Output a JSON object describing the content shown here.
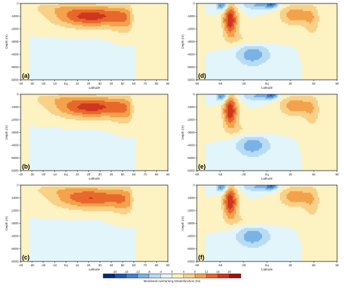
{
  "chart_data": {
    "type": "heatmap",
    "colorbar": {
      "label": "Meridional overturning streamfunction (Sv)",
      "ticks": [
        -20,
        -16,
        -12,
        -8,
        -4,
        0,
        4,
        8,
        12,
        16,
        20
      ],
      "tick_labels": [
        "-20",
        "-16",
        "-12",
        "-8",
        "-4",
        "0",
        "4",
        "8",
        "12",
        "16",
        "20"
      ],
      "colors": [
        "#0a2a78",
        "#1f56b0",
        "#3f82d2",
        "#79b3e6",
        "#b8dcf3",
        "#e2f5fb",
        "#fcf2c2",
        "#f8d088",
        "#f3a24b",
        "#e8682c",
        "#cf361f",
        "#9b1414"
      ]
    },
    "panels": [
      {
        "label": "(a)",
        "basin": "atlantic",
        "xlabel": "Latitude",
        "ylabel": "Depth (m)",
        "xlim": [
          -40,
          90
        ],
        "ylim": [
          -6000,
          0
        ],
        "x_ticks": [
          -40,
          -30,
          -20,
          -10,
          0,
          10,
          20,
          30,
          40,
          50,
          60,
          70,
          80,
          90
        ],
        "x_tick_labels": [
          "-40",
          "-30",
          "-20",
          "-10",
          "Eq",
          "10",
          "20",
          "30",
          "40",
          "50",
          "60",
          "70",
          "80",
          "90"
        ],
        "y_ticks": [
          0,
          -1000,
          -2000,
          -3000,
          -4000,
          -5000,
          -6000
        ],
        "y_tick_labels": [
          "0",
          "-1000",
          "-2000",
          "-3000",
          "-4000",
          "-5000",
          "-6000"
        ],
        "max_sv": 18
      },
      {
        "label": "(b)",
        "basin": "atlantic",
        "xlabel": "Latitude",
        "ylabel": "Depth (m)",
        "xlim": [
          -40,
          90
        ],
        "ylim": [
          -6000,
          0
        ],
        "x_ticks": [
          -40,
          -30,
          -20,
          -10,
          0,
          10,
          20,
          30,
          40,
          50,
          60,
          70,
          80,
          90
        ],
        "x_tick_labels": [
          "-40",
          "-30",
          "-20",
          "-10",
          "Eq",
          "10",
          "20",
          "30",
          "40",
          "50",
          "60",
          "70",
          "80",
          "90"
        ],
        "y_ticks": [
          0,
          -1000,
          -2000,
          -3000,
          -4000,
          -5000,
          -6000
        ],
        "y_tick_labels": [
          "0",
          "-1000",
          "-2000",
          "-3000",
          "-4000",
          "-5000",
          "-6000"
        ],
        "max_sv": 18
      },
      {
        "label": "(c)",
        "basin": "atlantic",
        "xlabel": "Latitude",
        "ylabel": "Depth (m)",
        "xlim": [
          -40,
          90
        ],
        "ylim": [
          -6000,
          0
        ],
        "x_ticks": [
          -40,
          -30,
          -20,
          -10,
          0,
          10,
          20,
          30,
          40,
          50,
          60,
          70,
          80,
          90
        ],
        "x_tick_labels": [
          "-40",
          "-30",
          "-20",
          "-10",
          "Eq",
          "10",
          "20",
          "30",
          "40",
          "50",
          "60",
          "70",
          "80",
          "90"
        ],
        "y_ticks": [
          0,
          -1000,
          -2000,
          -3000,
          -4000,
          -5000,
          -6000
        ],
        "y_tick_labels": [
          "0",
          "-1000",
          "-2000",
          "-3000",
          "-4000",
          "-5000",
          "-6000"
        ],
        "max_sv": 16
      },
      {
        "label": "(d)",
        "basin": "global",
        "xlabel": "Latitude",
        "ylabel": "Depth (m)",
        "xlim": [
          -90,
          90
        ],
        "ylim": [
          -6000,
          0
        ],
        "x_ticks": [
          -90,
          -60,
          -30,
          0,
          30,
          60,
          90
        ],
        "x_tick_labels": [
          "-90",
          "-60",
          "-30",
          "Eq",
          "30",
          "60",
          "90"
        ],
        "y_ticks": [
          0,
          -1000,
          -2000,
          -3000,
          -4000,
          -5000,
          -6000
        ],
        "y_tick_labels": [
          "0",
          "-1000",
          "-2000",
          "-3000",
          "-4000",
          "-5000",
          "-6000"
        ],
        "max_sv": 20
      },
      {
        "label": "(e)",
        "basin": "global",
        "xlabel": "Latitude",
        "ylabel": "Depth (m)",
        "xlim": [
          -90,
          90
        ],
        "ylim": [
          -6000,
          0
        ],
        "x_ticks": [
          -90,
          -60,
          -30,
          0,
          30,
          60,
          90
        ],
        "x_tick_labels": [
          "-90",
          "-60",
          "-30",
          "Eq",
          "30",
          "60",
          "90"
        ],
        "y_ticks": [
          0,
          -1000,
          -2000,
          -3000,
          -4000,
          -5000,
          -6000
        ],
        "y_tick_labels": [
          "0",
          "-1000",
          "-2000",
          "-3000",
          "-4000",
          "-5000",
          "-6000"
        ],
        "max_sv": 20
      },
      {
        "label": "(f)",
        "basin": "global",
        "xlabel": "Latitude",
        "ylabel": "Depth (m)",
        "xlim": [
          -90,
          90
        ],
        "ylim": [
          -6000,
          0
        ],
        "x_ticks": [
          -90,
          -60,
          -30,
          0,
          30,
          60,
          90
        ],
        "x_tick_labels": [
          "-90",
          "-60",
          "-30",
          "Eq",
          "30",
          "60",
          "90"
        ],
        "y_ticks": [
          0,
          -1000,
          -2000,
          -3000,
          -4000,
          -5000,
          -6000
        ],
        "y_tick_labels": [
          "0",
          "-1000",
          "-2000",
          "-3000",
          "-4000",
          "-5000",
          "-6000"
        ],
        "max_sv": 20
      }
    ]
  }
}
